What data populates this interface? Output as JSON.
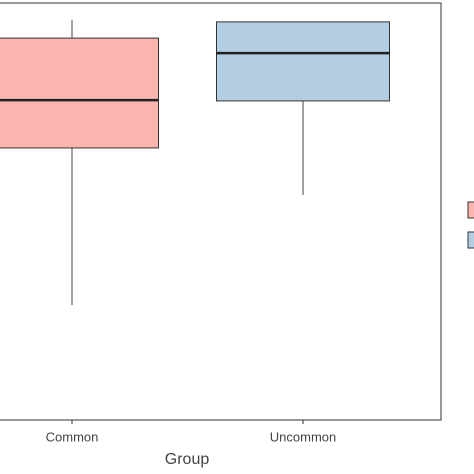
{
  "chart_data": {
    "type": "box",
    "x_label": "Group",
    "categories": [
      "Common",
      "Uncommon"
    ],
    "ylim": [
      0,
      100
    ],
    "series": [
      {
        "name": "Common",
        "color": "#fbb4ae",
        "whisker_low": 27.6,
        "q1": 65.4,
        "median": 76.9,
        "q3": 91.8,
        "whisker_high": 96.2
      },
      {
        "name": "Uncommon",
        "color": "#b3cde3",
        "whisker_low": 54.1,
        "q1": 76.7,
        "median": 88.2,
        "q3": 95.7,
        "whisker_high": 95.7
      }
    ]
  }
}
